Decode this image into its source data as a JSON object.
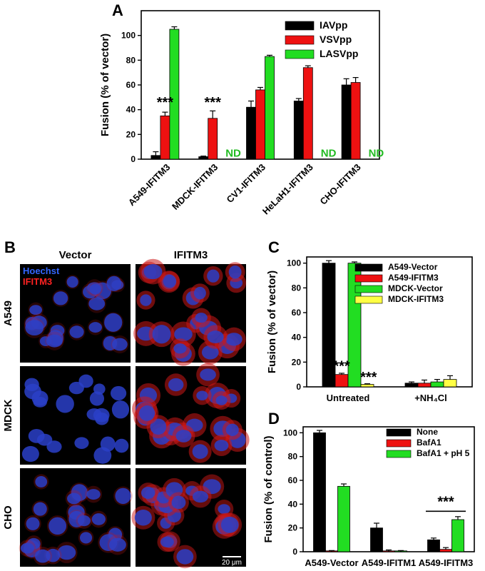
{
  "panel_b": {
    "letter": "B",
    "col_headers": [
      "Vector",
      "IFITM3"
    ],
    "row_labels": [
      "A549",
      "MDCK",
      "CHO"
    ],
    "stain_labels": [
      "Hoechst",
      "IFITM3"
    ],
    "stain_colors": [
      "#3366ff",
      "#ff2222"
    ],
    "scale_bar": "20 μm"
  },
  "chart_data": [
    {
      "letter": "A",
      "type": "bar",
      "ylabel": "Fusion (% of vector)",
      "ylim": [
        0,
        120
      ],
      "yticks": [
        "0",
        "20",
        "40",
        "60",
        "80",
        "100"
      ],
      "categories": [
        "A549-IFITM3",
        "MDCK-IFITM3",
        "CV1-IFITM3",
        "HeLaH1-IFITM3",
        "CHO-IFITM3"
      ],
      "series": [
        {
          "name": "IAVpp",
          "color": "#000000",
          "values": [
            3,
            2,
            42,
            47,
            60
          ],
          "errors": [
            3,
            0.5,
            5,
            2,
            5
          ]
        },
        {
          "name": "VSVpp",
          "color": "#ee1111",
          "values": [
            35,
            33,
            56,
            74,
            62
          ],
          "errors": [
            3,
            6,
            2,
            1.5,
            4
          ]
        },
        {
          "name": "LASVpp",
          "color": "#22dd22",
          "values": [
            105,
            null,
            83,
            null,
            null
          ],
          "errors": [
            2,
            0,
            1,
            0,
            0
          ]
        }
      ],
      "annotations": [
        {
          "text": "***",
          "category": 0
        },
        {
          "text": "***",
          "category": 1
        },
        {
          "text": "ND",
          "category": 1
        },
        {
          "text": "ND",
          "category": 3
        },
        {
          "text": "ND",
          "category": 4
        }
      ],
      "legend": "top-right"
    },
    {
      "letter": "C",
      "type": "bar",
      "ylabel": "Fusion (% of vector)",
      "ylim": [
        0,
        105
      ],
      "yticks": [
        "0",
        "20",
        "40",
        "60",
        "80",
        "100"
      ],
      "categories": [
        "Untreated",
        "+NH₄Cl"
      ],
      "series": [
        {
          "name": "A549-Vector",
          "color": "#000000",
          "values": [
            100,
            3
          ],
          "errors": [
            2,
            1
          ]
        },
        {
          "name": "A549-IFITM3",
          "color": "#ee1111",
          "values": [
            10,
            3
          ],
          "errors": [
            1,
            2.5
          ]
        },
        {
          "name": "MDCK-Vector",
          "color": "#22dd22",
          "values": [
            100,
            4
          ],
          "errors": [
            1,
            2
          ]
        },
        {
          "name": "MDCK-IFITM3",
          "color": "#ffff44",
          "values": [
            2,
            6
          ],
          "errors": [
            0.5,
            3
          ]
        }
      ],
      "annotations": [
        {
          "text": "***",
          "category": 0
        },
        {
          "text": "***",
          "category": 0
        }
      ],
      "legend": "top-right"
    },
    {
      "letter": "D",
      "type": "bar",
      "ylabel": "Fusion (% of control)",
      "ylim": [
        0,
        105
      ],
      "yticks": [
        "0",
        "20",
        "40",
        "60",
        "80",
        "100"
      ],
      "categories": [
        "A549-Vector",
        "A549-IFITM1",
        "A549-IFITM3"
      ],
      "series": [
        {
          "name": "None",
          "color": "#000000",
          "values": [
            100,
            20,
            10
          ],
          "errors": [
            2,
            4,
            1.5
          ]
        },
        {
          "name": "BafA1",
          "color": "#ee1111",
          "values": [
            0,
            0,
            2
          ],
          "errors": [
            1,
            1.5,
            1.5
          ]
        },
        {
          "name": "BafA1 + pH 5",
          "color": "#22dd22",
          "values": [
            55,
            0,
            27
          ],
          "errors": [
            2,
            1,
            2.5
          ]
        }
      ],
      "annotations": [
        {
          "text": "***",
          "category": 2
        }
      ],
      "legend": "top-right"
    }
  ]
}
